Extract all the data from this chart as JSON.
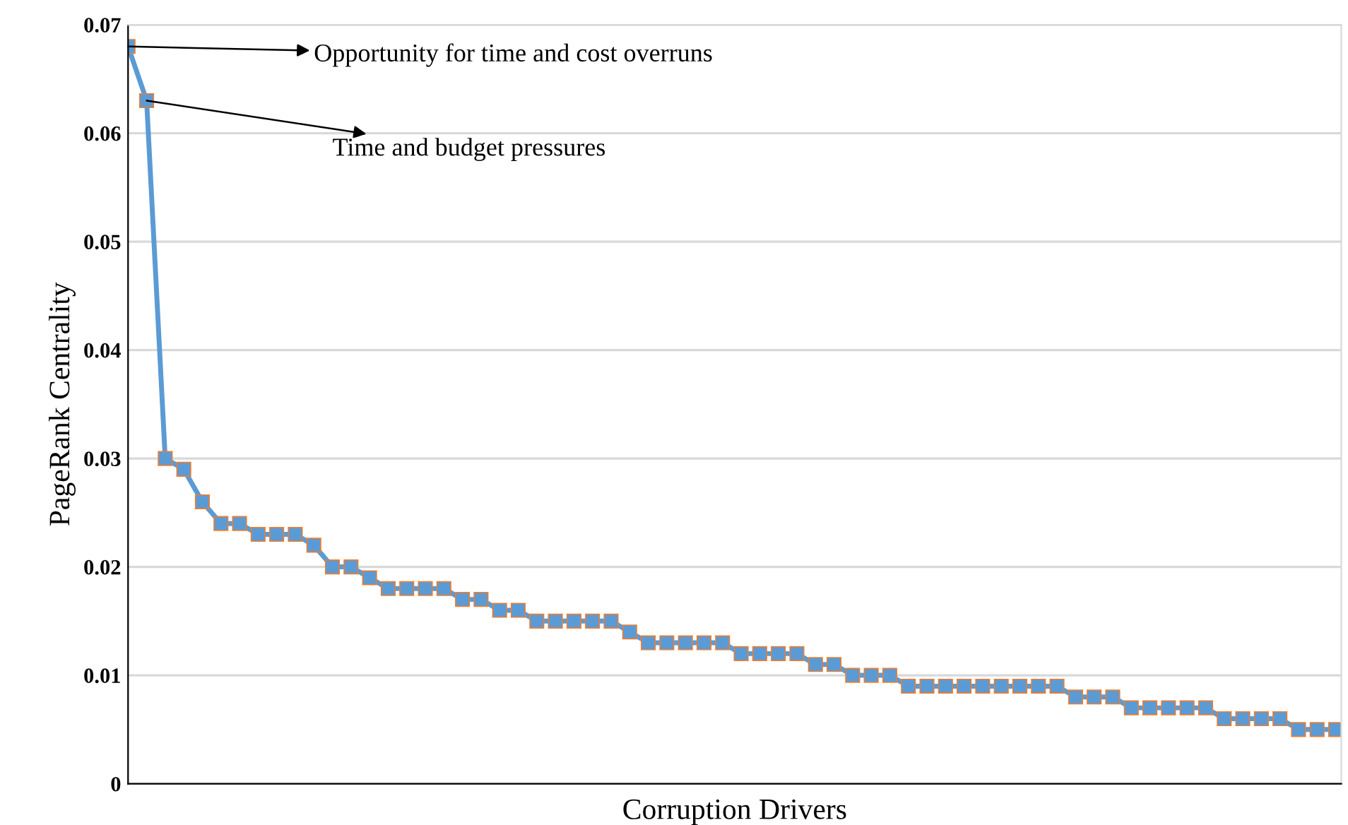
{
  "chart_data": {
    "type": "line",
    "xlabel": "Corruption Drivers",
    "ylabel": "PageRank Centrality",
    "categories": [
      null,
      null,
      null,
      null,
      null,
      null,
      null,
      null,
      null,
      null,
      null,
      null,
      null,
      null,
      null,
      null,
      null,
      null,
      null,
      null,
      null,
      null,
      null,
      null,
      null,
      null,
      null,
      null,
      null,
      null,
      null,
      null,
      null,
      null,
      null,
      null,
      null,
      null,
      null,
      null,
      null,
      null,
      null,
      null,
      null,
      null,
      null,
      null,
      null,
      null,
      null,
      null,
      null,
      null,
      null,
      null,
      null,
      null,
      null,
      null,
      null,
      null,
      null,
      null,
      null,
      null
    ],
    "series": [
      {
        "color": "#5b9bd5",
        "values": [
          0.068,
          0.063,
          0.03,
          0.029,
          0.026,
          0.024,
          0.024,
          0.023,
          0.023,
          0.023,
          0.022,
          0.02,
          0.02,
          0.019,
          0.018,
          0.018,
          0.018,
          0.018,
          0.017,
          0.017,
          0.016,
          0.016,
          0.015,
          0.015,
          0.015,
          0.015,
          0.015,
          0.014,
          0.013,
          0.013,
          0.013,
          0.013,
          0.013,
          0.012,
          0.012,
          0.012,
          0.012,
          0.011,
          0.011,
          0.01,
          0.01,
          0.01,
          0.009,
          0.009,
          0.009,
          0.009,
          0.009,
          0.009,
          0.009,
          0.009,
          0.009,
          0.008,
          0.008,
          0.008,
          0.007,
          0.007,
          0.007,
          0.007,
          0.007,
          0.006,
          0.006,
          0.006,
          0.006,
          0.005,
          0.005,
          0.005
        ]
      }
    ],
    "ylim": [
      0,
      0.07
    ],
    "yticks": [
      {
        "value": 0,
        "label": "0"
      },
      0.01,
      0.02,
      0.03,
      0.04,
      0.05,
      0.06,
      0.07
    ],
    "grid": "y",
    "marker": "square",
    "line_style": "solid",
    "annotations": [
      "Opportunity for time and cost overruns",
      "Time and budget pressures"
    ]
  }
}
